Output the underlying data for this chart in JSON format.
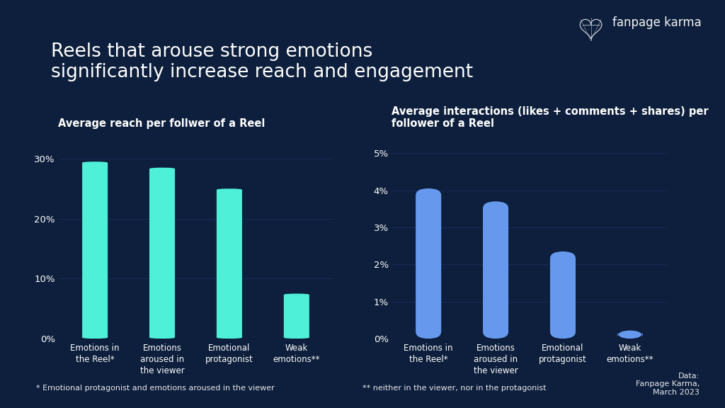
{
  "bg_color": "#0d1f3c",
  "title_line1": "Reels that arouse strong emotions",
  "title_line2": "significantly increase reach and engagement",
  "title_fontsize": 19,
  "title_color": "#ffffff",
  "chart1": {
    "subtitle": "Average reach per follwer of a Reel",
    "categories": [
      "Emotions in\nthe Reel*",
      "Emotions\naroused in\nthe viewer",
      "Emotional\nprotagonist",
      "Weak\nemotions**"
    ],
    "values": [
      29.5,
      28.5,
      25.0,
      7.5
    ],
    "bar_color": "#4ef0d8",
    "ylim": [
      0,
      34
    ],
    "yticks": [
      0,
      10,
      20,
      30
    ],
    "ytick_labels": [
      "0%",
      "10%",
      "20%",
      "30%"
    ],
    "grid_color": "#1a3060"
  },
  "chart2": {
    "subtitle": "Average interactions (likes + comments + shares) per\nfollower of a Reel",
    "categories": [
      "Emotions in\nthe Reel*",
      "Emotions\naroused in\nthe viewer",
      "Emotional\nprotagonist",
      "Weak\nemotions**"
    ],
    "values": [
      4.05,
      3.7,
      2.35,
      0.22
    ],
    "bar_color": "#6699ee",
    "ylim": [
      0,
      5.5
    ],
    "yticks": [
      0,
      1,
      2,
      3,
      4,
      5
    ],
    "ytick_labels": [
      "0%",
      "1%",
      "2%",
      "3%",
      "4%",
      "5%"
    ],
    "grid_color": "#1a3060"
  },
  "footnote1": "* Emotional protagonist and emotions aroused in the viewer",
  "footnote2": "** neither in the viewer, nor in the protagonist",
  "data_credit": "Data:\nFanpage Karma,\nMarch 2023",
  "text_color": "#ffffff",
  "subtitle_fontsize": 10.5,
  "tick_fontsize": 9.5,
  "cat_fontsize": 8.5,
  "footnote_fontsize": 8.0,
  "logo_text": "fanpage karma",
  "logo_fontsize": 12
}
